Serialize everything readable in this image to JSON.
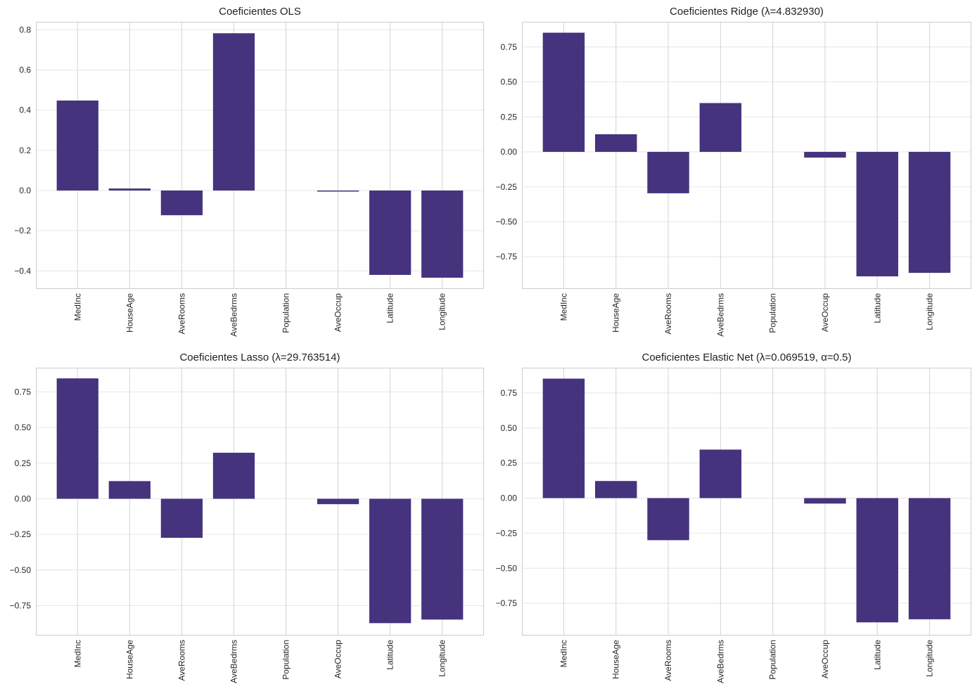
{
  "figure": {
    "bar_color": "#46337e",
    "grid_color": "#e6e6e6",
    "axis_color": "#cccccc"
  },
  "chart_data": [
    {
      "type": "bar",
      "title": "Coeficientes OLS",
      "categories": [
        "MedInc",
        "HouseAge",
        "AveRooms",
        "AveBedrms",
        "Population",
        "AveOccup",
        "Latitude",
        "Longitude"
      ],
      "values": [
        0.448,
        0.01,
        -0.123,
        0.783,
        0.0,
        -0.004,
        -0.42,
        -0.434
      ],
      "ylim": [
        -0.49,
        0.84
      ],
      "yticks": [
        -0.4,
        -0.2,
        0.0,
        0.2,
        0.4,
        0.6,
        0.8
      ],
      "ytick_labels": [
        "−0.4",
        "−0.2",
        "0.0",
        "0.2",
        "0.4",
        "0.6",
        "0.8"
      ],
      "xlabel": "",
      "ylabel": "",
      "grid": true
    },
    {
      "type": "bar",
      "title": "Coeficientes Ridge (λ=4.832930)",
      "categories": [
        "MedInc",
        "HouseAge",
        "AveRooms",
        "AveBedrms",
        "Population",
        "AveOccup",
        "Latitude",
        "Longitude"
      ],
      "values": [
        0.852,
        0.126,
        -0.296,
        0.349,
        0.0,
        -0.041,
        -0.89,
        -0.865
      ],
      "ylim": [
        -0.98,
        0.93
      ],
      "yticks": [
        -0.75,
        -0.5,
        -0.25,
        0.0,
        0.25,
        0.5,
        0.75
      ],
      "ytick_labels": [
        "−0.75",
        "−0.50",
        "−0.25",
        "0.00",
        "0.25",
        "0.50",
        "0.75"
      ],
      "xlabel": "",
      "ylabel": "",
      "grid": true
    },
    {
      "type": "bar",
      "title": "Coeficientes Lasso (λ=29.763514)",
      "categories": [
        "MedInc",
        "HouseAge",
        "AveRooms",
        "AveBedrms",
        "Population",
        "AveOccup",
        "Latitude",
        "Longitude"
      ],
      "values": [
        0.845,
        0.124,
        -0.274,
        0.323,
        0.0,
        -0.038,
        -0.873,
        -0.848
      ],
      "ylim": [
        -0.96,
        0.92
      ],
      "yticks": [
        -0.75,
        -0.5,
        -0.25,
        0.0,
        0.25,
        0.5,
        0.75
      ],
      "ytick_labels": [
        "−0.75",
        "−0.50",
        "−0.25",
        "0.00",
        "0.25",
        "0.50",
        "0.75"
      ],
      "xlabel": "",
      "ylabel": "",
      "grid": true
    },
    {
      "type": "bar",
      "title": "Coeficientes Elastic Net (λ=0.069519, α=0.5)",
      "categories": [
        "MedInc",
        "HouseAge",
        "AveRooms",
        "AveBedrms",
        "Population",
        "AveOccup",
        "Latitude",
        "Longitude"
      ],
      "values": [
        0.852,
        0.122,
        -0.3,
        0.346,
        0.0,
        -0.039,
        -0.886,
        -0.864
      ],
      "ylim": [
        -0.98,
        0.93
      ],
      "yticks": [
        -0.75,
        -0.5,
        -0.25,
        0.0,
        0.25,
        0.5,
        0.75
      ],
      "ytick_labels": [
        "−0.75",
        "−0.50",
        "−0.25",
        "0.00",
        "0.25",
        "0.50",
        "0.75"
      ],
      "xlabel": "",
      "ylabel": "",
      "grid": true
    }
  ]
}
